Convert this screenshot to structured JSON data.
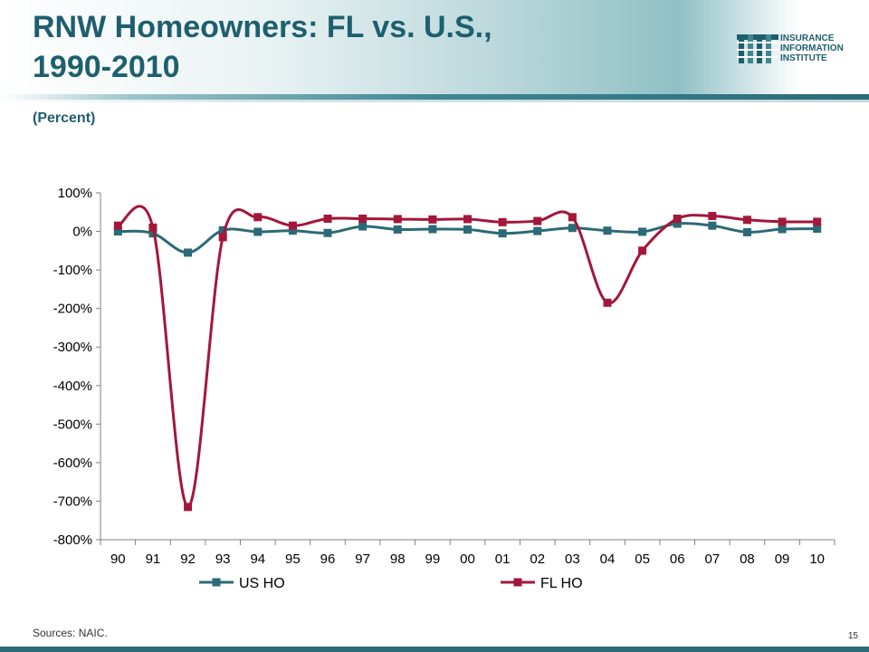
{
  "header": {
    "title_line1": "RNW Homeowners: FL vs. U.S.,",
    "title_line2": "1990-2010",
    "subtitle": "(Percent)"
  },
  "logo": {
    "line1": "INSURANCE",
    "line2": "INFORMATION",
    "line3": "INSTITUTE",
    "icon": "iii-logo-icon"
  },
  "footer": {
    "sources": "Sources: NAIC.",
    "page_number": "15"
  },
  "colors": {
    "title": "#1e5f6e",
    "us_ho": "#2b6a77",
    "fl_ho": "#a3173a"
  },
  "chart_data": {
    "type": "line",
    "categories": [
      "90",
      "91",
      "92",
      "93",
      "94",
      "95",
      "96",
      "97",
      "98",
      "99",
      "00",
      "01",
      "02",
      "03",
      "04",
      "05",
      "06",
      "07",
      "08",
      "09",
      "10"
    ],
    "series": [
      {
        "name": "US HO",
        "color": "#2b6a77",
        "marker": "square",
        "values": [
          0,
          -5,
          -55,
          3,
          -1,
          2,
          -4,
          13,
          5,
          6,
          5,
          -5,
          1,
          9,
          2,
          -1,
          20,
          15,
          -2,
          6,
          7
        ]
      },
      {
        "name": "FL HO",
        "color": "#a3173a",
        "marker": "square",
        "values": [
          15,
          10,
          -715,
          -15,
          37,
          15,
          33,
          33,
          32,
          31,
          32,
          24,
          27,
          37,
          -185,
          -50,
          33,
          40,
          30,
          25,
          25
        ]
      }
    ],
    "ylim": [
      -800,
      100
    ],
    "ytick_step": 100,
    "ytick_labels": [
      "100%",
      "0%",
      "-100%",
      "-200%",
      "-300%",
      "-400%",
      "-500%",
      "-600%",
      "-700%",
      "-800%"
    ],
    "xlabel": "",
    "ylabel": "",
    "grid": false,
    "legend_position": "bottom"
  }
}
